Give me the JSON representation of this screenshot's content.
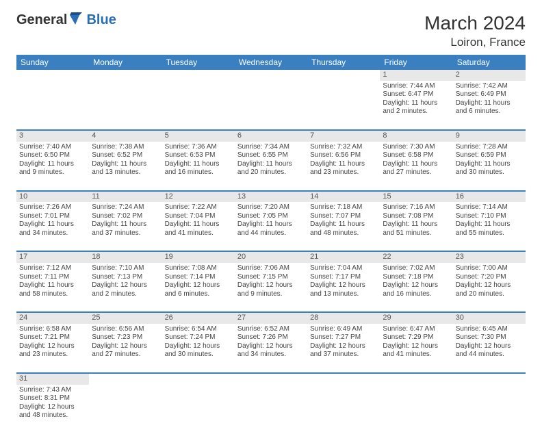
{
  "logo": {
    "part1": "General",
    "part2": "Blue"
  },
  "title": "March 2024",
  "location": "Loiron, France",
  "colors": {
    "header_bg": "#3a80c0",
    "header_text": "#ffffff",
    "accent_border": "#3a80c0",
    "daynum_bg": "#e8e8e8",
    "body_text": "#444444",
    "logo_accent": "#2a6fb5"
  },
  "font": {
    "family": "Arial",
    "daynum_size": 11,
    "cell_size": 10,
    "header_size": 12,
    "title_size": 28,
    "location_size": 17
  },
  "weekdays": [
    "Sunday",
    "Monday",
    "Tuesday",
    "Wednesday",
    "Thursday",
    "Friday",
    "Saturday"
  ],
  "weeks": [
    [
      null,
      null,
      null,
      null,
      null,
      {
        "n": "1",
        "sr": "Sunrise: 7:44 AM",
        "ss": "Sunset: 6:47 PM",
        "dl": "Daylight: 11 hours and 2 minutes."
      },
      {
        "n": "2",
        "sr": "Sunrise: 7:42 AM",
        "ss": "Sunset: 6:49 PM",
        "dl": "Daylight: 11 hours and 6 minutes."
      }
    ],
    [
      {
        "n": "3",
        "sr": "Sunrise: 7:40 AM",
        "ss": "Sunset: 6:50 PM",
        "dl": "Daylight: 11 hours and 9 minutes."
      },
      {
        "n": "4",
        "sr": "Sunrise: 7:38 AM",
        "ss": "Sunset: 6:52 PM",
        "dl": "Daylight: 11 hours and 13 minutes."
      },
      {
        "n": "5",
        "sr": "Sunrise: 7:36 AM",
        "ss": "Sunset: 6:53 PM",
        "dl": "Daylight: 11 hours and 16 minutes."
      },
      {
        "n": "6",
        "sr": "Sunrise: 7:34 AM",
        "ss": "Sunset: 6:55 PM",
        "dl": "Daylight: 11 hours and 20 minutes."
      },
      {
        "n": "7",
        "sr": "Sunrise: 7:32 AM",
        "ss": "Sunset: 6:56 PM",
        "dl": "Daylight: 11 hours and 23 minutes."
      },
      {
        "n": "8",
        "sr": "Sunrise: 7:30 AM",
        "ss": "Sunset: 6:58 PM",
        "dl": "Daylight: 11 hours and 27 minutes."
      },
      {
        "n": "9",
        "sr": "Sunrise: 7:28 AM",
        "ss": "Sunset: 6:59 PM",
        "dl": "Daylight: 11 hours and 30 minutes."
      }
    ],
    [
      {
        "n": "10",
        "sr": "Sunrise: 7:26 AM",
        "ss": "Sunset: 7:01 PM",
        "dl": "Daylight: 11 hours and 34 minutes."
      },
      {
        "n": "11",
        "sr": "Sunrise: 7:24 AM",
        "ss": "Sunset: 7:02 PM",
        "dl": "Daylight: 11 hours and 37 minutes."
      },
      {
        "n": "12",
        "sr": "Sunrise: 7:22 AM",
        "ss": "Sunset: 7:04 PM",
        "dl": "Daylight: 11 hours and 41 minutes."
      },
      {
        "n": "13",
        "sr": "Sunrise: 7:20 AM",
        "ss": "Sunset: 7:05 PM",
        "dl": "Daylight: 11 hours and 44 minutes."
      },
      {
        "n": "14",
        "sr": "Sunrise: 7:18 AM",
        "ss": "Sunset: 7:07 PM",
        "dl": "Daylight: 11 hours and 48 minutes."
      },
      {
        "n": "15",
        "sr": "Sunrise: 7:16 AM",
        "ss": "Sunset: 7:08 PM",
        "dl": "Daylight: 11 hours and 51 minutes."
      },
      {
        "n": "16",
        "sr": "Sunrise: 7:14 AM",
        "ss": "Sunset: 7:10 PM",
        "dl": "Daylight: 11 hours and 55 minutes."
      }
    ],
    [
      {
        "n": "17",
        "sr": "Sunrise: 7:12 AM",
        "ss": "Sunset: 7:11 PM",
        "dl": "Daylight: 11 hours and 58 minutes."
      },
      {
        "n": "18",
        "sr": "Sunrise: 7:10 AM",
        "ss": "Sunset: 7:13 PM",
        "dl": "Daylight: 12 hours and 2 minutes."
      },
      {
        "n": "19",
        "sr": "Sunrise: 7:08 AM",
        "ss": "Sunset: 7:14 PM",
        "dl": "Daylight: 12 hours and 6 minutes."
      },
      {
        "n": "20",
        "sr": "Sunrise: 7:06 AM",
        "ss": "Sunset: 7:15 PM",
        "dl": "Daylight: 12 hours and 9 minutes."
      },
      {
        "n": "21",
        "sr": "Sunrise: 7:04 AM",
        "ss": "Sunset: 7:17 PM",
        "dl": "Daylight: 12 hours and 13 minutes."
      },
      {
        "n": "22",
        "sr": "Sunrise: 7:02 AM",
        "ss": "Sunset: 7:18 PM",
        "dl": "Daylight: 12 hours and 16 minutes."
      },
      {
        "n": "23",
        "sr": "Sunrise: 7:00 AM",
        "ss": "Sunset: 7:20 PM",
        "dl": "Daylight: 12 hours and 20 minutes."
      }
    ],
    [
      {
        "n": "24",
        "sr": "Sunrise: 6:58 AM",
        "ss": "Sunset: 7:21 PM",
        "dl": "Daylight: 12 hours and 23 minutes."
      },
      {
        "n": "25",
        "sr": "Sunrise: 6:56 AM",
        "ss": "Sunset: 7:23 PM",
        "dl": "Daylight: 12 hours and 27 minutes."
      },
      {
        "n": "26",
        "sr": "Sunrise: 6:54 AM",
        "ss": "Sunset: 7:24 PM",
        "dl": "Daylight: 12 hours and 30 minutes."
      },
      {
        "n": "27",
        "sr": "Sunrise: 6:52 AM",
        "ss": "Sunset: 7:26 PM",
        "dl": "Daylight: 12 hours and 34 minutes."
      },
      {
        "n": "28",
        "sr": "Sunrise: 6:49 AM",
        "ss": "Sunset: 7:27 PM",
        "dl": "Daylight: 12 hours and 37 minutes."
      },
      {
        "n": "29",
        "sr": "Sunrise: 6:47 AM",
        "ss": "Sunset: 7:29 PM",
        "dl": "Daylight: 12 hours and 41 minutes."
      },
      {
        "n": "30",
        "sr": "Sunrise: 6:45 AM",
        "ss": "Sunset: 7:30 PM",
        "dl": "Daylight: 12 hours and 44 minutes."
      }
    ],
    [
      {
        "n": "31",
        "sr": "Sunrise: 7:43 AM",
        "ss": "Sunset: 8:31 PM",
        "dl": "Daylight: 12 hours and 48 minutes."
      },
      null,
      null,
      null,
      null,
      null,
      null
    ]
  ]
}
